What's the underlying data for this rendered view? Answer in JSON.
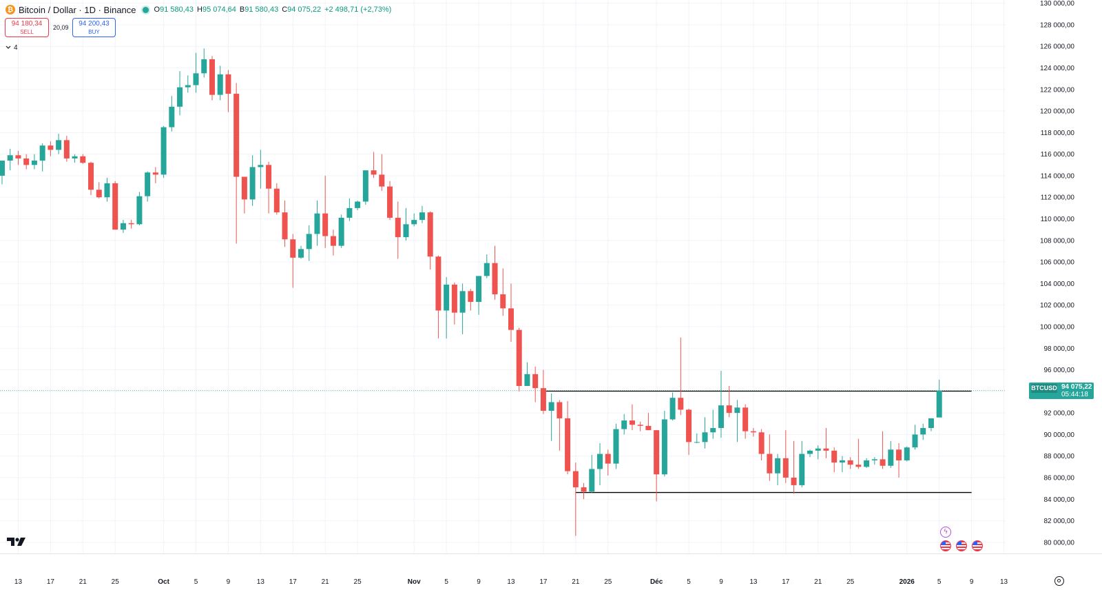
{
  "header": {
    "title": "Bitcoin / Dollar · 1D · Binance",
    "coin_glyph": "₿",
    "ohlc": [
      {
        "label": "O",
        "value": "91 580,43"
      },
      {
        "label": "H",
        "value": "95 074,64"
      },
      {
        "label": "B",
        "value": "91 580,43"
      },
      {
        "label": "C",
        "value": "94 075,22"
      }
    ],
    "change": "+2 498,71 (+2,73%)"
  },
  "trade": {
    "sell_price": "94 180,34",
    "sell_label": "SELL",
    "spread": "20,09",
    "buy_price": "94 200,43",
    "buy_label": "BUY"
  },
  "indicators_toggle": "4",
  "price_tag": {
    "symbol": "BTCUSD",
    "price": "94 075,22",
    "countdown": "05:44:18"
  },
  "colors": {
    "up": "#26a69a",
    "down": "#ef5350",
    "axis_text": "#131722",
    "grid": "#f0f3fa",
    "hline": "#000000",
    "last_price": "#26a69a"
  },
  "icons": [
    "tradingview-logo-icon",
    "flash-event-icon",
    "us-flag-event-icon",
    "settings-gear-icon",
    "chevron-down-icon"
  ],
  "chart_data": {
    "type": "candlestick",
    "title": "Bitcoin / Dollar · 1D · Binance",
    "series_name": "BTCUSD",
    "ylim": [
      79000,
      131000
    ],
    "y_ticks": [
      80000,
      82000,
      84000,
      86000,
      88000,
      90000,
      92000,
      94000,
      96000,
      98000,
      100000,
      102000,
      104000,
      106000,
      108000,
      110000,
      112000,
      114000,
      116000,
      118000,
      120000,
      122000,
      124000,
      126000,
      128000,
      130000
    ],
    "y_tick_labels": [
      "80 000,00",
      "82 000,00",
      "84 000,00",
      "86 000,00",
      "88 000,00",
      "90 000,00",
      "92 000,00",
      "94 000,00",
      "96 000,00",
      "98 000,00",
      "100 000,00",
      "102 000,00",
      "104 000,00",
      "106 000,00",
      "108 000,00",
      "110 000,00",
      "112 000,00",
      "114 000,00",
      "116 000,00",
      "118 000,00",
      "120 000,00",
      "122 000,00",
      "124 000,00",
      "126 000,00",
      "128 000,00",
      "130 000,00"
    ],
    "x_ticks": [
      {
        "date": "2025-09-13",
        "label": "13"
      },
      {
        "date": "2025-09-17",
        "label": "17"
      },
      {
        "date": "2025-09-21",
        "label": "21"
      },
      {
        "date": "2025-09-25",
        "label": "25"
      },
      {
        "date": "2025-10-01",
        "label": "Oct",
        "major": true
      },
      {
        "date": "2025-10-05",
        "label": "5"
      },
      {
        "date": "2025-10-09",
        "label": "9"
      },
      {
        "date": "2025-10-13",
        "label": "13"
      },
      {
        "date": "2025-10-17",
        "label": "17"
      },
      {
        "date": "2025-10-21",
        "label": "21"
      },
      {
        "date": "2025-10-25",
        "label": "25"
      },
      {
        "date": "2025-11-01",
        "label": "Nov",
        "major": true
      },
      {
        "date": "2025-11-05",
        "label": "5"
      },
      {
        "date": "2025-11-09",
        "label": "9"
      },
      {
        "date": "2025-11-13",
        "label": "13"
      },
      {
        "date": "2025-11-17",
        "label": "17"
      },
      {
        "date": "2025-11-21",
        "label": "21"
      },
      {
        "date": "2025-11-25",
        "label": "25"
      },
      {
        "date": "2025-12-01",
        "label": "Déc",
        "major": true
      },
      {
        "date": "2025-12-05",
        "label": "5"
      },
      {
        "date": "2025-12-09",
        "label": "9"
      },
      {
        "date": "2025-12-13",
        "label": "13"
      },
      {
        "date": "2025-12-17",
        "label": "17"
      },
      {
        "date": "2025-12-21",
        "label": "21"
      },
      {
        "date": "2025-12-25",
        "label": "25"
      },
      {
        "date": "2026-01-01",
        "label": "2026",
        "major": true
      },
      {
        "date": "2026-01-05",
        "label": "5"
      },
      {
        "date": "2026-01-09",
        "label": "9"
      },
      {
        "date": "2026-01-13",
        "label": "13"
      }
    ],
    "x_range": [
      "2025-09-11",
      "2026-01-16"
    ],
    "horizontal_lines": [
      {
        "price": 94020,
        "from": "2025-11-17",
        "to": "2026-01-09"
      },
      {
        "price": 84620,
        "from": "2025-11-21",
        "to": "2026-01-09"
      }
    ],
    "last_price": 94075.22,
    "candles": [
      {
        "date": "2025-09-11",
        "o": 114000,
        "h": 115200,
        "l": 113200,
        "c": 115400
      },
      {
        "date": "2025-09-12",
        "o": 115400,
        "h": 116500,
        "l": 114500,
        "c": 115900
      },
      {
        "date": "2025-09-13",
        "o": 115900,
        "h": 116300,
        "l": 115000,
        "c": 115600
      },
      {
        "date": "2025-09-14",
        "o": 115600,
        "h": 116000,
        "l": 114600,
        "c": 115000
      },
      {
        "date": "2025-09-15",
        "o": 115000,
        "h": 116000,
        "l": 114600,
        "c": 115400
      },
      {
        "date": "2025-09-16",
        "o": 115400,
        "h": 117000,
        "l": 114400,
        "c": 116800
      },
      {
        "date": "2025-09-17",
        "o": 116800,
        "h": 117200,
        "l": 115800,
        "c": 116400
      },
      {
        "date": "2025-09-18",
        "o": 116400,
        "h": 117900,
        "l": 116000,
        "c": 117300
      },
      {
        "date": "2025-09-19",
        "o": 117300,
        "h": 117700,
        "l": 115300,
        "c": 115600
      },
      {
        "date": "2025-09-20",
        "o": 115600,
        "h": 116000,
        "l": 115200,
        "c": 115800
      },
      {
        "date": "2025-09-21",
        "o": 115800,
        "h": 116000,
        "l": 115100,
        "c": 115200
      },
      {
        "date": "2025-09-22",
        "o": 115200,
        "h": 115300,
        "l": 112200,
        "c": 112700
      },
      {
        "date": "2025-09-23",
        "o": 112700,
        "h": 113400,
        "l": 111900,
        "c": 112000
      },
      {
        "date": "2025-09-24",
        "o": 112000,
        "h": 113800,
        "l": 111600,
        "c": 113300
      },
      {
        "date": "2025-09-25",
        "o": 113300,
        "h": 113500,
        "l": 109400,
        "c": 109000
      },
      {
        "date": "2025-09-26",
        "o": 109000,
        "h": 109900,
        "l": 108700,
        "c": 109600
      },
      {
        "date": "2025-09-27",
        "o": 109600,
        "h": 109900,
        "l": 109100,
        "c": 109500
      },
      {
        "date": "2025-09-28",
        "o": 109500,
        "h": 112500,
        "l": 109400,
        "c": 112100
      },
      {
        "date": "2025-09-29",
        "o": 112100,
        "h": 114400,
        "l": 111600,
        "c": 114300
      },
      {
        "date": "2025-09-30",
        "o": 114300,
        "h": 114800,
        "l": 113300,
        "c": 114100
      },
      {
        "date": "2025-10-01",
        "o": 114100,
        "h": 118600,
        "l": 113800,
        "c": 118500
      },
      {
        "date": "2025-10-02",
        "o": 118500,
        "h": 121400,
        "l": 118100,
        "c": 120400
      },
      {
        "date": "2025-10-03",
        "o": 120400,
        "h": 123700,
        "l": 119600,
        "c": 122200
      },
      {
        "date": "2025-10-04",
        "o": 122200,
        "h": 123300,
        "l": 121700,
        "c": 122400
      },
      {
        "date": "2025-10-05",
        "o": 122400,
        "h": 125400,
        "l": 121700,
        "c": 123500
      },
      {
        "date": "2025-10-06",
        "o": 123500,
        "h": 125800,
        "l": 123100,
        "c": 124800
      },
      {
        "date": "2025-10-07",
        "o": 124800,
        "h": 125100,
        "l": 121000,
        "c": 121500
      },
      {
        "date": "2025-10-08",
        "o": 121500,
        "h": 124200,
        "l": 121000,
        "c": 123400
      },
      {
        "date": "2025-10-09",
        "o": 123400,
        "h": 123800,
        "l": 119900,
        "c": 121600
      },
      {
        "date": "2025-10-10",
        "o": 121600,
        "h": 122600,
        "l": 107700,
        "c": 113900
      },
      {
        "date": "2025-10-11",
        "o": 113900,
        "h": 113700,
        "l": 110500,
        "c": 111800
      },
      {
        "date": "2025-10-12",
        "o": 111800,
        "h": 115900,
        "l": 111200,
        "c": 114800
      },
      {
        "date": "2025-10-13",
        "o": 114800,
        "h": 116400,
        "l": 112800,
        "c": 115000
      },
      {
        "date": "2025-10-14",
        "o": 115000,
        "h": 115300,
        "l": 110500,
        "c": 112800
      },
      {
        "date": "2025-10-15",
        "o": 112800,
        "h": 113300,
        "l": 110400,
        "c": 110600
      },
      {
        "date": "2025-10-16",
        "o": 110600,
        "h": 111700,
        "l": 107400,
        "c": 108100
      },
      {
        "date": "2025-10-17",
        "o": 108100,
        "h": 108600,
        "l": 103600,
        "c": 106400
      },
      {
        "date": "2025-10-18",
        "o": 106400,
        "h": 107500,
        "l": 106300,
        "c": 107200
      },
      {
        "date": "2025-10-19",
        "o": 107200,
        "h": 109400,
        "l": 106100,
        "c": 108600
      },
      {
        "date": "2025-10-20",
        "o": 108600,
        "h": 111700,
        "l": 107500,
        "c": 110500
      },
      {
        "date": "2025-10-21",
        "o": 110500,
        "h": 114000,
        "l": 107300,
        "c": 108400
      },
      {
        "date": "2025-10-22",
        "o": 108400,
        "h": 109000,
        "l": 106600,
        "c": 107500
      },
      {
        "date": "2025-10-23",
        "o": 107500,
        "h": 110400,
        "l": 107300,
        "c": 110100
      },
      {
        "date": "2025-10-24",
        "o": 110100,
        "h": 111900,
        "l": 109800,
        "c": 111000
      },
      {
        "date": "2025-10-25",
        "o": 111000,
        "h": 111700,
        "l": 110800,
        "c": 111600
      },
      {
        "date": "2025-10-26",
        "o": 111600,
        "h": 114500,
        "l": 111300,
        "c": 114500
      },
      {
        "date": "2025-10-27",
        "o": 114500,
        "h": 116200,
        "l": 113800,
        "c": 114100
      },
      {
        "date": "2025-10-28",
        "o": 114100,
        "h": 116000,
        "l": 112600,
        "c": 113000
      },
      {
        "date": "2025-10-29",
        "o": 113000,
        "h": 113500,
        "l": 109900,
        "c": 110100
      },
      {
        "date": "2025-10-30",
        "o": 110100,
        "h": 111600,
        "l": 106300,
        "c": 108300
      },
      {
        "date": "2025-10-31",
        "o": 108300,
        "h": 111000,
        "l": 108000,
        "c": 109500
      },
      {
        "date": "2025-11-01",
        "o": 109500,
        "h": 110500,
        "l": 109300,
        "c": 109900
      },
      {
        "date": "2025-11-02",
        "o": 109900,
        "h": 111200,
        "l": 109600,
        "c": 110600
      },
      {
        "date": "2025-11-03",
        "o": 110600,
        "h": 110700,
        "l": 105300,
        "c": 106500
      },
      {
        "date": "2025-11-04",
        "o": 106500,
        "h": 106600,
        "l": 98900,
        "c": 101500
      },
      {
        "date": "2025-11-05",
        "o": 101500,
        "h": 104600,
        "l": 98900,
        "c": 103900
      },
      {
        "date": "2025-11-06",
        "o": 103900,
        "h": 104100,
        "l": 100200,
        "c": 101300
      },
      {
        "date": "2025-11-07",
        "o": 101300,
        "h": 104000,
        "l": 99300,
        "c": 103300
      },
      {
        "date": "2025-11-08",
        "o": 103300,
        "h": 103500,
        "l": 101500,
        "c": 102300
      },
      {
        "date": "2025-11-09",
        "o": 102300,
        "h": 104600,
        "l": 101100,
        "c": 104700
      },
      {
        "date": "2025-11-10",
        "o": 104700,
        "h": 106700,
        "l": 104500,
        "c": 105900
      },
      {
        "date": "2025-11-11",
        "o": 105900,
        "h": 107500,
        "l": 102500,
        "c": 103000
      },
      {
        "date": "2025-11-12",
        "o": 103000,
        "h": 105400,
        "l": 101000,
        "c": 101700
      },
      {
        "date": "2025-11-13",
        "o": 101700,
        "h": 104000,
        "l": 98600,
        "c": 99700
      },
      {
        "date": "2025-11-14",
        "o": 99700,
        "h": 99900,
        "l": 94000,
        "c": 94500
      },
      {
        "date": "2025-11-15",
        "o": 94500,
        "h": 96700,
        "l": 94600,
        "c": 95600
      },
      {
        "date": "2025-11-16",
        "o": 95600,
        "h": 96300,
        "l": 93000,
        "c": 94300
      },
      {
        "date": "2025-11-17",
        "o": 94300,
        "h": 96000,
        "l": 91900,
        "c": 92200
      },
      {
        "date": "2025-11-18",
        "o": 92200,
        "h": 93800,
        "l": 89400,
        "c": 93000
      },
      {
        "date": "2025-11-19",
        "o": 93000,
        "h": 93200,
        "l": 88500,
        "c": 91500
      },
      {
        "date": "2025-11-20",
        "o": 91500,
        "h": 93100,
        "l": 86300,
        "c": 86600
      },
      {
        "date": "2025-11-21",
        "o": 86600,
        "h": 87400,
        "l": 80600,
        "c": 85100
      },
      {
        "date": "2025-11-22",
        "o": 85100,
        "h": 85500,
        "l": 84000,
        "c": 84700
      },
      {
        "date": "2025-11-23",
        "o": 84700,
        "h": 88100,
        "l": 84600,
        "c": 86800
      },
      {
        "date": "2025-11-24",
        "o": 86800,
        "h": 89200,
        "l": 85300,
        "c": 88200
      },
      {
        "date": "2025-11-25",
        "o": 88200,
        "h": 88600,
        "l": 86200,
        "c": 87300
      },
      {
        "date": "2025-11-26",
        "o": 87300,
        "h": 91000,
        "l": 86800,
        "c": 90500
      },
      {
        "date": "2025-11-27",
        "o": 90500,
        "h": 91900,
        "l": 90000,
        "c": 91300
      },
      {
        "date": "2025-11-28",
        "o": 91300,
        "h": 92800,
        "l": 90400,
        "c": 90900
      },
      {
        "date": "2025-11-29",
        "o": 90900,
        "h": 91200,
        "l": 90300,
        "c": 90800
      },
      {
        "date": "2025-11-30",
        "o": 90800,
        "h": 92000,
        "l": 90500,
        "c": 90400
      },
      {
        "date": "2025-12-01",
        "o": 90400,
        "h": 90400,
        "l": 83800,
        "c": 86300
      },
      {
        "date": "2025-12-02",
        "o": 86300,
        "h": 92200,
        "l": 86100,
        "c": 91400
      },
      {
        "date": "2025-12-03",
        "o": 91400,
        "h": 93900,
        "l": 91300,
        "c": 93400
      },
      {
        "date": "2025-12-04",
        "o": 93400,
        "h": 99000,
        "l": 91800,
        "c": 92300
      },
      {
        "date": "2025-12-05",
        "o": 92300,
        "h": 92400,
        "l": 88100,
        "c": 89300
      },
      {
        "date": "2025-12-06",
        "o": 89300,
        "h": 90100,
        "l": 89200,
        "c": 89300
      },
      {
        "date": "2025-12-07",
        "o": 89300,
        "h": 91600,
        "l": 88700,
        "c": 90200
      },
      {
        "date": "2025-12-08",
        "o": 90200,
        "h": 92300,
        "l": 89600,
        "c": 90600
      },
      {
        "date": "2025-12-09",
        "o": 90600,
        "h": 95900,
        "l": 89700,
        "c": 92700
      },
      {
        "date": "2025-12-10",
        "o": 92700,
        "h": 94500,
        "l": 91600,
        "c": 92000
      },
      {
        "date": "2025-12-11",
        "o": 92000,
        "h": 93200,
        "l": 89300,
        "c": 92500
      },
      {
        "date": "2025-12-12",
        "o": 92500,
        "h": 92800,
        "l": 89600,
        "c": 90300
      },
      {
        "date": "2025-12-13",
        "o": 90300,
        "h": 90600,
        "l": 89800,
        "c": 90200
      },
      {
        "date": "2025-12-14",
        "o": 90200,
        "h": 90500,
        "l": 87600,
        "c": 88200
      },
      {
        "date": "2025-12-15",
        "o": 88200,
        "h": 90000,
        "l": 85700,
        "c": 86400
      },
      {
        "date": "2025-12-16",
        "o": 86400,
        "h": 88200,
        "l": 85300,
        "c": 87800
      },
      {
        "date": "2025-12-17",
        "o": 87800,
        "h": 90400,
        "l": 85500,
        "c": 86000
      },
      {
        "date": "2025-12-18",
        "o": 86000,
        "h": 89400,
        "l": 84500,
        "c": 85300
      },
      {
        "date": "2025-12-19",
        "o": 85300,
        "h": 89400,
        "l": 85100,
        "c": 88200
      },
      {
        "date": "2025-12-20",
        "o": 88200,
        "h": 88600,
        "l": 87900,
        "c": 88500
      },
      {
        "date": "2025-12-21",
        "o": 88500,
        "h": 89000,
        "l": 87700,
        "c": 88700
      },
      {
        "date": "2025-12-22",
        "o": 88700,
        "h": 90600,
        "l": 87800,
        "c": 88500
      },
      {
        "date": "2025-12-23",
        "o": 88500,
        "h": 88800,
        "l": 86500,
        "c": 87400
      },
      {
        "date": "2025-12-24",
        "o": 87400,
        "h": 88000,
        "l": 86500,
        "c": 87600
      },
      {
        "date": "2025-12-25",
        "o": 87600,
        "h": 87900,
        "l": 86800,
        "c": 87200
      },
      {
        "date": "2025-12-26",
        "o": 87200,
        "h": 89600,
        "l": 86800,
        "c": 87000
      },
      {
        "date": "2025-12-27",
        "o": 87000,
        "h": 87800,
        "l": 86900,
        "c": 87600
      },
      {
        "date": "2025-12-28",
        "o": 87600,
        "h": 87900,
        "l": 87200,
        "c": 87700
      },
      {
        "date": "2025-12-29",
        "o": 87700,
        "h": 90300,
        "l": 86800,
        "c": 87100
      },
      {
        "date": "2025-12-30",
        "o": 87100,
        "h": 89400,
        "l": 86900,
        "c": 88600
      },
      {
        "date": "2025-12-31",
        "o": 88600,
        "h": 89200,
        "l": 86000,
        "c": 87600
      },
      {
        "date": "2026-01-01",
        "o": 87600,
        "h": 88900,
        "l": 87500,
        "c": 88800
      },
      {
        "date": "2026-01-02",
        "o": 88800,
        "h": 90900,
        "l": 88600,
        "c": 90000
      },
      {
        "date": "2026-01-03",
        "o": 90000,
        "h": 91000,
        "l": 89500,
        "c": 90600
      },
      {
        "date": "2026-01-04",
        "o": 90600,
        "h": 91500,
        "l": 90300,
        "c": 91500
      },
      {
        "date": "2026-01-05",
        "o": 91580.43,
        "h": 95074.64,
        "l": 91580.43,
        "c": 94075.22
      }
    ]
  }
}
